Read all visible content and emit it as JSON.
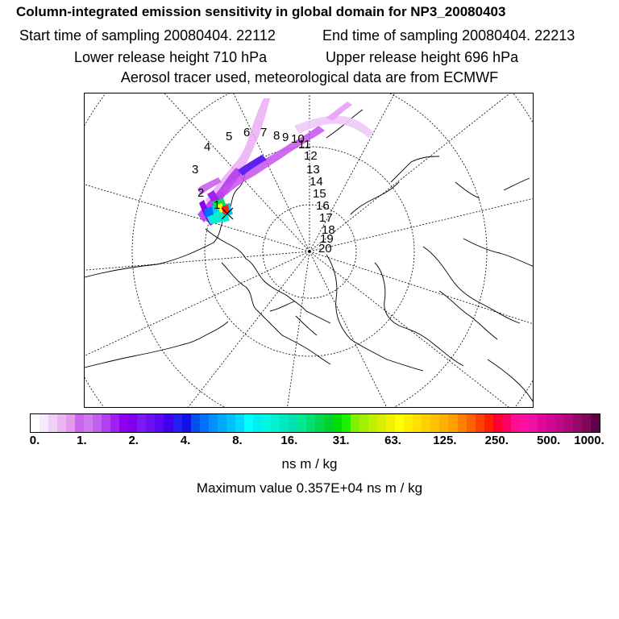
{
  "header": {
    "title": "Column-integrated emission sensitivity in global domain for NP3_20080403",
    "start_time": "Start time of sampling 20080404. 22112",
    "end_time": "End time of sampling 20080404. 22213",
    "lower_release": "Lower release height  710 hPa",
    "upper_release": "Upper release height  696 hPa",
    "tracer_info": "Aerosol tracer used, meteorological data are from ECMWF"
  },
  "map": {
    "day_markers": [
      "1",
      "2",
      "3",
      "4",
      "5",
      "6",
      "7",
      "8",
      "9",
      "10",
      "11",
      "12",
      "13",
      "14",
      "15",
      "16",
      "17",
      "18",
      "19",
      "20"
    ]
  },
  "colorbar": {
    "tick_labels": [
      "0.",
      "1.",
      "2.",
      "4.",
      "8.",
      "16.",
      "31.",
      "63.",
      "125.",
      "250.",
      "500.",
      "1000."
    ],
    "colors": [
      "#ffffff",
      "#f8e8fb",
      "#f1d0f7",
      "#ebb6f3",
      "#e39bee",
      "#cc66ee",
      "#d07af0",
      "#c060f0",
      "#b040f0",
      "#a020f0",
      "#9000ee",
      "#8000ee",
      "#7a1af0",
      "#6a10f0",
      "#5a08f0",
      "#4000f0",
      "#2020f0",
      "#1010e8",
      "#0050f0",
      "#0070ff",
      "#0090ff",
      "#00a8ff",
      "#00c0ff",
      "#00d8ff",
      "#00ffff",
      "#00f0f0",
      "#00f8e0",
      "#00f0d0",
      "#00e8c0",
      "#00e0b0",
      "#00e890",
      "#00e070",
      "#00d850",
      "#00d030",
      "#00e000",
      "#20f000",
      "#80f000",
      "#a0f000",
      "#c0f000",
      "#d8f000",
      "#f0f000",
      "#ffff00",
      "#ffee00",
      "#ffe000",
      "#ffd000",
      "#ffc000",
      "#ffb000",
      "#ffa000",
      "#ff8000",
      "#ff6000",
      "#ff4000",
      "#ff2000",
      "#ff0030",
      "#ff0060",
      "#ff1090",
      "#ff10a0",
      "#f010a0",
      "#e00898",
      "#d00890",
      "#c00888",
      "#b00878",
      "#980868",
      "#800858",
      "#600048"
    ],
    "units": "ns m / kg",
    "max_value_text": "Maximum value  0.357E+04 ns m / kg"
  }
}
